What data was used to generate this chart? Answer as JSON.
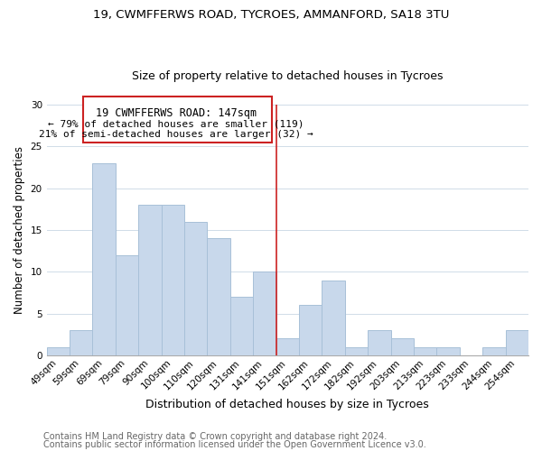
{
  "title": "19, CWMFFERWS ROAD, TYCROES, AMMANFORD, SA18 3TU",
  "subtitle": "Size of property relative to detached houses in Tycroes",
  "xlabel": "Distribution of detached houses by size in Tycroes",
  "ylabel": "Number of detached properties",
  "categories": [
    "49sqm",
    "59sqm",
    "69sqm",
    "79sqm",
    "90sqm",
    "100sqm",
    "110sqm",
    "120sqm",
    "131sqm",
    "141sqm",
    "151sqm",
    "162sqm",
    "172sqm",
    "182sqm",
    "192sqm",
    "203sqm",
    "213sqm",
    "223sqm",
    "233sqm",
    "244sqm",
    "254sqm"
  ],
  "values": [
    1,
    3,
    23,
    12,
    18,
    18,
    16,
    14,
    7,
    10,
    2,
    6,
    9,
    1,
    3,
    2,
    1,
    1,
    0,
    1,
    3
  ],
  "bar_color": "#c8d8eb",
  "bar_edge_color": "#a8c0d8",
  "vline_x_index": 9.5,
  "vline_color": "#cc2222",
  "annotation_title": "19 CWMFFERWS ROAD: 147sqm",
  "annotation_line1": "← 79% of detached houses are smaller (119)",
  "annotation_line2": "21% of semi-detached houses are larger (32) →",
  "annotation_box_color": "#ffffff",
  "annotation_box_edge_color": "#cc2222",
  "ylim": [
    0,
    30
  ],
  "yticks": [
    0,
    5,
    10,
    15,
    20,
    25,
    30
  ],
  "footnote1": "Contains HM Land Registry data © Crown copyright and database right 2024.",
  "footnote2": "Contains public sector information licensed under the Open Government Licence v3.0.",
  "title_fontsize": 9.5,
  "subtitle_fontsize": 9,
  "xlabel_fontsize": 9,
  "ylabel_fontsize": 8.5,
  "tick_fontsize": 7.5,
  "footnote_fontsize": 7,
  "annotation_title_fontsize": 8.5,
  "annotation_line_fontsize": 8
}
